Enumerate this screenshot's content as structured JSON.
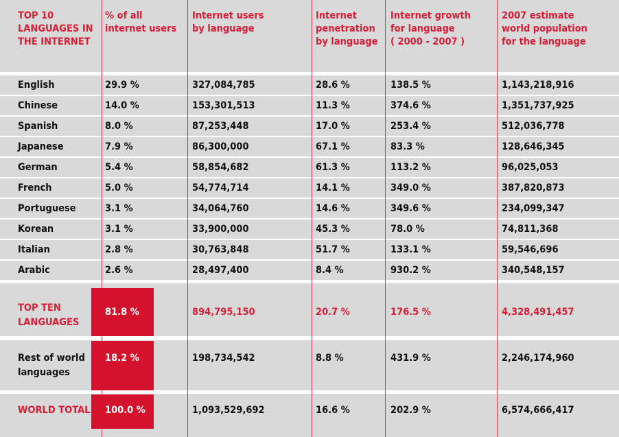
{
  "chart_data": {
    "type": "table",
    "columns": [
      "TOP 10\nLANGUAGES IN\nTHE INTERNET",
      "% of all\ninternet users",
      "Internet users\nby language",
      "Internet\npenetration\nby language",
      "Internet growth\nfor language\n( 2000 - 2007 )",
      "2007 estimate\nworld population\nfor the language"
    ],
    "rows": [
      [
        "English",
        "29.9 %",
        "327,084,785",
        "28.6 %",
        "138.5 %",
        "1,143,218,916"
      ],
      [
        "Chinese",
        "14.0 %",
        "153,301,513",
        "11.3 %",
        "374.6 %",
        "1,351,737,925"
      ],
      [
        "Spanish",
        "8.0 %",
        "87,253,448",
        "17.0 %",
        "253.4 %",
        "512,036,778"
      ],
      [
        "Japanese",
        "7.9 %",
        "86,300,000",
        "67.1 %",
        "83.3 %",
        "128,646,345"
      ],
      [
        "German",
        "5.4 %",
        "58,854,682",
        "61.3 %",
        "113.2 %",
        "96,025,053"
      ],
      [
        "French",
        "5.0 %",
        "54,774,714",
        "14.1 %",
        "349.0 %",
        "387,820,873"
      ],
      [
        "Portuguese",
        "3.1 %",
        "34,064,760",
        "14.6 %",
        "349.6 %",
        "234,099,347"
      ],
      [
        "Korean",
        "3.1 %",
        "33,900,000",
        "45.3 %",
        "78.0 %",
        "74,811,368"
      ],
      [
        "Italian",
        "2.8 %",
        "30,763,848",
        "51.7 %",
        "133.1 %",
        "59,546,696"
      ],
      [
        "Arabic",
        "2.6 %",
        "28,497,400",
        "8.4 %",
        "930.2 %",
        "340,548,157"
      ]
    ],
    "totals": [
      [
        "TOP TEN\nLANGUAGES",
        "81.8 %",
        "894,795,150",
        "20.7 %",
        "176.5 %",
        "4,328,491,457"
      ],
      [
        "Rest of world\nlanguages",
        "18.2 %",
        "198,734,542",
        "8.8 %",
        "431.9 %",
        "2,246,174,960"
      ],
      [
        "WORLD TOTAL",
        "100.0 %",
        "1,093,529,692",
        "16.6 %",
        "202.9 %",
        "6,574,666,417"
      ]
    ],
    "colors": {
      "accent": "#d71e36",
      "box": "#d4122b",
      "band": "#d9d9d9",
      "divider": "#e0314a"
    }
  }
}
